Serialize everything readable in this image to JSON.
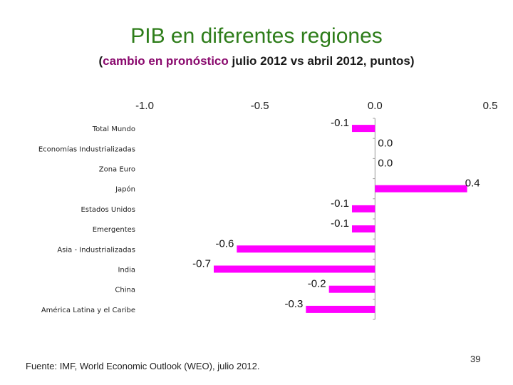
{
  "title": "PIB en diferentes regiones",
  "subtitle": {
    "open": "(",
    "highlight": "cambio en pronóstico",
    "rest": " julio 2012 vs abril 2012, puntos)"
  },
  "source": "Fuente: IMF, World Economic Outlook (WEO), julio 2012.",
  "page_number": "39",
  "colors": {
    "bar": "#ff00ff",
    "title": "#2e7d1a",
    "highlight": "#8a0a6e"
  },
  "chart_data": {
    "type": "bar",
    "orientation": "horizontal",
    "categories": [
      "Total Mundo",
      "Economías Industrializadas",
      "Zona Euro",
      "Japón",
      "Estados Unidos",
      "Emergentes",
      "Asia - Industrializadas",
      "India",
      "China",
      "América Latina y el Caribe"
    ],
    "values": [
      -0.1,
      0.0,
      0.0,
      0.4,
      -0.1,
      -0.1,
      -0.6,
      -0.7,
      -0.2,
      -0.3
    ],
    "value_labels": [
      "-0.1",
      "0.0",
      "0.0",
      "0.4",
      "-0.1",
      "-0.1",
      "-0.6",
      "-0.7",
      "-0.2",
      "-0.3"
    ],
    "xlim": [
      -1.0,
      0.5
    ],
    "xticks": [
      -1.0,
      -0.5,
      0.0,
      0.5
    ],
    "xtick_labels": [
      "-1.0",
      "-0.5",
      "0.0",
      "0.5"
    ],
    "axis_position": "top",
    "grid": false
  }
}
